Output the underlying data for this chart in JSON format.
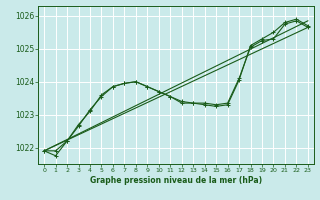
{
  "title": "Graphe pression niveau de la mer (hPa)",
  "bg_color": "#caeaea",
  "grid_color": "#ffffff",
  "line_color": "#1a5c1a",
  "ylim": [
    1021.5,
    1026.3
  ],
  "yticks": [
    1022,
    1023,
    1024,
    1025,
    1026
  ],
  "xlim": [
    -0.5,
    23.5
  ],
  "xticks": [
    0,
    1,
    2,
    3,
    4,
    5,
    6,
    7,
    8,
    9,
    10,
    11,
    12,
    13,
    14,
    15,
    16,
    17,
    18,
    19,
    20,
    21,
    22,
    23
  ],
  "series_linear1": {
    "x": [
      0,
      23
    ],
    "y": [
      1021.9,
      1025.85
    ]
  },
  "series_linear2": {
    "x": [
      0,
      23
    ],
    "y": [
      1021.9,
      1025.65
    ]
  },
  "series_marked1_x": [
    0,
    1,
    2,
    3,
    4,
    5,
    6,
    7,
    8,
    9,
    10,
    11,
    12,
    13,
    14,
    15,
    16,
    17,
    18,
    19,
    20,
    21,
    22,
    23
  ],
  "series_marked1_y": [
    1021.9,
    1021.75,
    1022.2,
    1022.65,
    1023.15,
    1023.55,
    1023.85,
    1023.95,
    1024.0,
    1023.85,
    1023.7,
    1023.55,
    1023.4,
    1023.35,
    1023.35,
    1023.3,
    1023.35,
    1024.1,
    1025.05,
    1025.25,
    1025.3,
    1025.75,
    1025.85,
    1025.65
  ],
  "series_marked2_x": [
    0,
    1,
    2,
    3,
    4,
    5,
    6,
    7,
    8,
    9,
    10,
    11,
    12,
    13,
    14,
    15,
    16,
    17,
    18,
    19,
    20,
    21,
    22,
    23
  ],
  "series_marked2_y": [
    1021.9,
    1021.9,
    1022.2,
    1022.7,
    1023.1,
    1023.6,
    1023.85,
    1023.95,
    1024.0,
    1023.85,
    1023.7,
    1023.55,
    1023.35,
    1023.35,
    1023.3,
    1023.25,
    1023.3,
    1024.05,
    1025.1,
    1025.3,
    1025.5,
    1025.8,
    1025.9,
    1025.7
  ]
}
